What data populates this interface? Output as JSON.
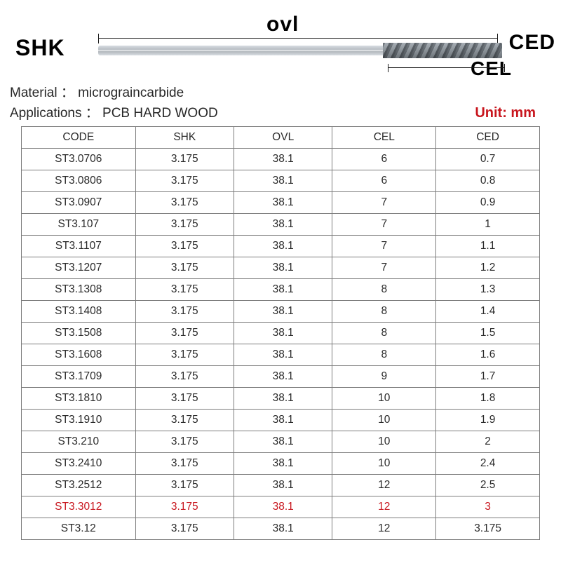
{
  "diagram": {
    "shk_label": "SHK",
    "ovl_label": "ovl",
    "cel_label": "CEL",
    "ced_label": "CED"
  },
  "info": {
    "material_label": "Material",
    "material_value": "micrograincarbide",
    "applications_label": "Applications",
    "applications_value": "PCB HARD WOOD"
  },
  "unit": {
    "label": "Unit:",
    "value": "mm"
  },
  "table": {
    "columns": [
      "CODE",
      "SHK",
      "OVL",
      "CEL",
      "CED"
    ],
    "rows": [
      {
        "cells": [
          "ST3.0706",
          "3.175",
          "38.1",
          "6",
          "0.7"
        ],
        "highlight": false
      },
      {
        "cells": [
          "ST3.0806",
          "3.175",
          "38.1",
          "6",
          "0.8"
        ],
        "highlight": false
      },
      {
        "cells": [
          "ST3.0907",
          "3.175",
          "38.1",
          "7",
          "0.9"
        ],
        "highlight": false
      },
      {
        "cells": [
          "ST3.107",
          "3.175",
          "38.1",
          "7",
          "1"
        ],
        "highlight": false
      },
      {
        "cells": [
          "ST3.1107",
          "3.175",
          "38.1",
          "7",
          "1.1"
        ],
        "highlight": false
      },
      {
        "cells": [
          "ST3.1207",
          "3.175",
          "38.1",
          "7",
          "1.2"
        ],
        "highlight": false
      },
      {
        "cells": [
          "ST3.1308",
          "3.175",
          "38.1",
          "8",
          "1.3"
        ],
        "highlight": false
      },
      {
        "cells": [
          "ST3.1408",
          "3.175",
          "38.1",
          "8",
          "1.4"
        ],
        "highlight": false
      },
      {
        "cells": [
          "ST3.1508",
          "3.175",
          "38.1",
          "8",
          "1.5"
        ],
        "highlight": false
      },
      {
        "cells": [
          "ST3.1608",
          "3.175",
          "38.1",
          "8",
          "1.6"
        ],
        "highlight": false
      },
      {
        "cells": [
          "ST3.1709",
          "3.175",
          "38.1",
          "9",
          "1.7"
        ],
        "highlight": false
      },
      {
        "cells": [
          "ST3.1810",
          "3.175",
          "38.1",
          "10",
          "1.8"
        ],
        "highlight": false
      },
      {
        "cells": [
          "ST3.1910",
          "3.175",
          "38.1",
          "10",
          "1.9"
        ],
        "highlight": false
      },
      {
        "cells": [
          "ST3.210",
          "3.175",
          "38.1",
          "10",
          "2"
        ],
        "highlight": false
      },
      {
        "cells": [
          "ST3.2410",
          "3.175",
          "38.1",
          "10",
          "2.4"
        ],
        "highlight": false
      },
      {
        "cells": [
          "ST3.2512",
          "3.175",
          "38.1",
          "12",
          "2.5"
        ],
        "highlight": false
      },
      {
        "cells": [
          "ST3.3012",
          "3.175",
          "38.1",
          "12",
          "3"
        ],
        "highlight": true
      },
      {
        "cells": [
          "ST3.12",
          "3.175",
          "38.1",
          "12",
          "3.175"
        ],
        "highlight": false
      }
    ],
    "highlight_color": "#c8161e",
    "border_color": "#7c7c7c",
    "font_size": 15.5,
    "col_widths_pct": [
      22,
      19,
      19,
      20,
      20
    ]
  },
  "colors": {
    "bg": "#ffffff",
    "text": "#2a2a2a",
    "accent": "#c8161e"
  }
}
